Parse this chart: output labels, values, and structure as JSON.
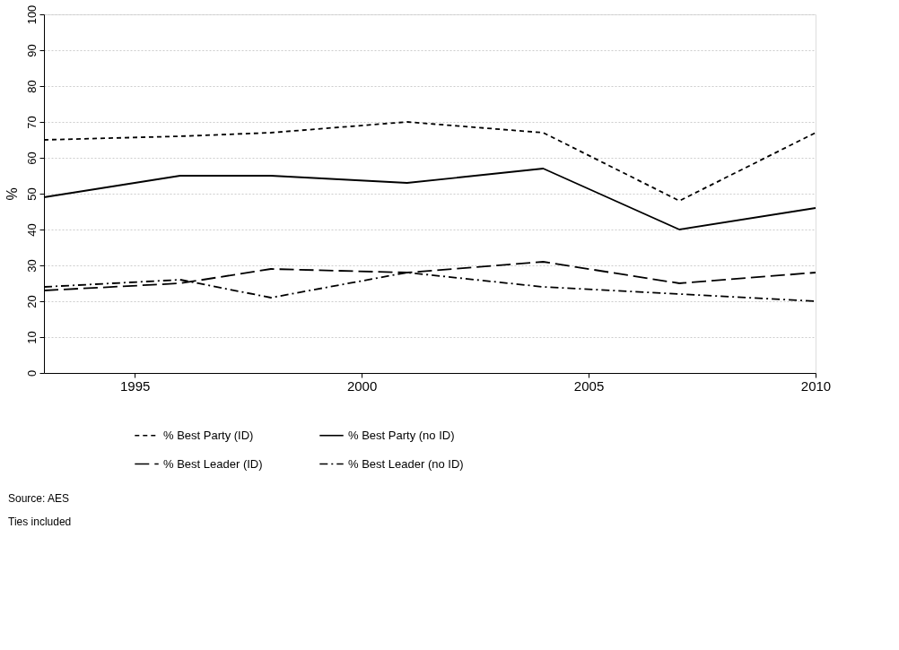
{
  "chart_data": {
    "type": "line",
    "ylabel": "%",
    "x": [
      1993,
      1996,
      1998,
      2001,
      2004,
      2007,
      2010
    ],
    "xlim": [
      1993,
      2010
    ],
    "xticks": [
      1995,
      2000,
      2005,
      2010
    ],
    "ylim": [
      0,
      100
    ],
    "yticks": [
      0,
      10,
      20,
      30,
      40,
      50,
      60,
      70,
      80,
      90,
      100
    ],
    "grid": "y",
    "legend": "bottom",
    "marker": "none",
    "series": [
      {
        "name": "% Best Party (ID)",
        "color": "#000000",
        "line_style": "dotted",
        "values": [
          65,
          66,
          67,
          70,
          67,
          48,
          67
        ]
      },
      {
        "name": "% Best Leader (ID)",
        "color": "#000000",
        "line_style": "dashed",
        "values": [
          23,
          25,
          29,
          28,
          31,
          25,
          28
        ]
      },
      {
        "name": "% Best Party (no ID)",
        "color": "#000000",
        "line_style": "solid",
        "values": [
          49,
          55,
          55,
          53,
          57,
          40,
          46
        ]
      },
      {
        "name": "% Best Leader (no ID)",
        "color": "#000000",
        "line_style": "dashdot",
        "values": [
          24,
          26,
          21,
          28,
          24,
          22,
          20
        ]
      }
    ],
    "annotations": [
      "Source: AES",
      "Ties included"
    ]
  }
}
